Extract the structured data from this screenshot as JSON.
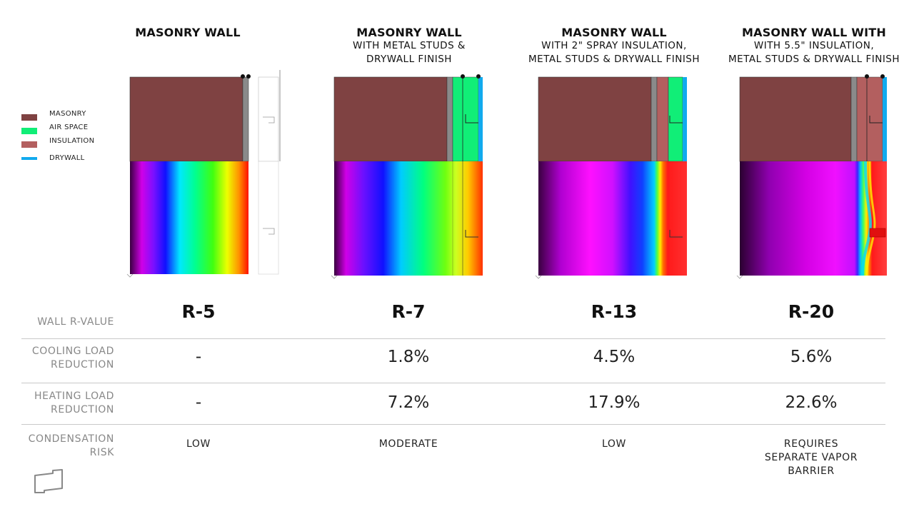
{
  "colors": {
    "masonry": "#7f4242",
    "air_space": "#11ee77",
    "insulation": "#b35f5f",
    "drywall": "#11aaee",
    "stud": "#8a8a8a"
  },
  "legend": [
    {
      "label": "MASONRY",
      "color": "#7f4242"
    },
    {
      "label": "AIR SPACE",
      "color": "#11ee77"
    },
    {
      "label": "INSULATION",
      "color": "#b35f5f"
    },
    {
      "label": "DRYWALL",
      "color": "#11aaee"
    }
  ],
  "columns": [
    {
      "title": "MASONRY WALL",
      "subtitle1": "",
      "subtitle2": "",
      "r_value": "R-5",
      "cooling": "-",
      "heating": "-",
      "risk1": "LOW",
      "risk2": "",
      "risk3": ""
    },
    {
      "title": "MASONRY WALL",
      "subtitle1": "WITH METAL STUDS &",
      "subtitle2": "DRYWALL FINISH",
      "r_value": "R-7",
      "cooling": "1.8%",
      "heating": "7.2%",
      "risk1": "MODERATE",
      "risk2": "",
      "risk3": ""
    },
    {
      "title": "MASONRY WALL",
      "subtitle1": "WITH 2\" SPRAY INSULATION,",
      "subtitle2": "METAL STUDS & DRYWALL FINISH",
      "r_value": "R-13",
      "cooling": "4.5%",
      "heating": "17.9%",
      "risk1": "LOW",
      "risk2": "",
      "risk3": ""
    },
    {
      "title": "MASONRY WALL WITH",
      "subtitle1": "WITH 5.5\" INSULATION,",
      "subtitle2": "METAL STUDS & DRYWALL FINISH",
      "r_value": "R-20",
      "cooling": "5.6%",
      "heating": "22.6%",
      "risk1": "REQUIRES",
      "risk2": "SEPARATE VAPOR",
      "risk3": "BARRIER"
    }
  ],
  "row_labels": {
    "r_value": "WALL R-VALUE",
    "cooling1": "COOLING LOAD",
    "cooling2": "REDUCTION",
    "heating1": "HEATING LOAD",
    "heating2": "REDUCTION",
    "risk1": "CONDENSATION",
    "risk2": "RISK"
  },
  "logo_icon": "wall-outline-icon"
}
